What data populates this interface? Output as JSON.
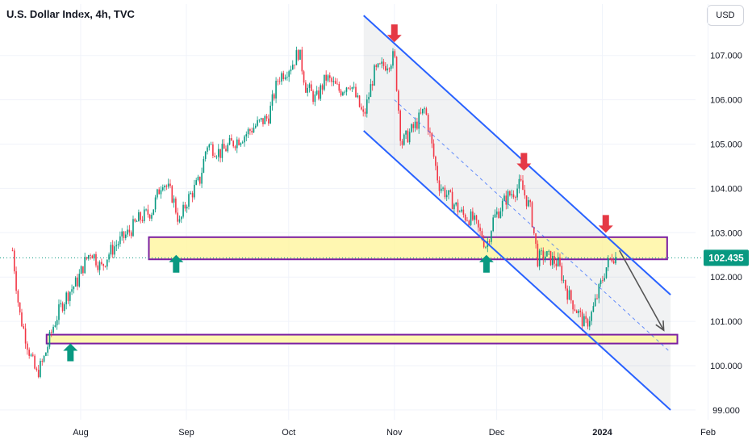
{
  "header": {
    "title": "U.S. Dollar Index, 4h, TVC"
  },
  "currency_button": {
    "label": "USD"
  },
  "colors": {
    "up": "#089981",
    "down": "#f23645",
    "channel": "#2962ff",
    "zone_fill": "#fff59d",
    "zone_border": "#7b1fa2",
    "arrow_up": "#089981",
    "arrow_down": "#e53945",
    "projection": "#555555"
  },
  "chart_data": {
    "type": "candlestick",
    "title": "U.S. Dollar Index, 4h, TVC",
    "currency": "USD",
    "last_price": "102.435",
    "ylim": [
      98.8,
      108.3
    ],
    "y_ticks": [
      "99.000",
      "100.000",
      "101.000",
      "102.000",
      "103.000",
      "104.000",
      "105.000",
      "106.000",
      "107.000"
    ],
    "x_ticks": [
      "Aug",
      "Sep",
      "Oct",
      "Nov",
      "Dec",
      "2024",
      "Feb"
    ],
    "path": [
      [
        "2023-07-12",
        102.6
      ],
      [
        "2023-07-14",
        101.2
      ],
      [
        "2023-07-17",
        100.3
      ],
      [
        "2023-07-19",
        99.8
      ],
      [
        "2023-07-21",
        100.1
      ],
      [
        "2023-07-24",
        100.9
      ],
      [
        "2023-07-26",
        101.3
      ],
      [
        "2023-07-28",
        101.6
      ],
      [
        "2023-07-31",
        101.9
      ],
      [
        "2023-08-02",
        102.3
      ],
      [
        "2023-08-04",
        102.6
      ],
      [
        "2023-08-07",
        102.2
      ],
      [
        "2023-08-09",
        102.5
      ],
      [
        "2023-08-11",
        102.7
      ],
      [
        "2023-08-15",
        103.0
      ],
      [
        "2023-08-18",
        103.3
      ],
      [
        "2023-08-22",
        103.5
      ],
      [
        "2023-08-25",
        104.2
      ],
      [
        "2023-08-28",
        103.8
      ],
      [
        "2023-08-30",
        103.2
      ],
      [
        "2023-09-01",
        103.7
      ],
      [
        "2023-09-05",
        104.2
      ],
      [
        "2023-09-07",
        105.0
      ],
      [
        "2023-09-11",
        104.8
      ],
      [
        "2023-09-14",
        105.0
      ],
      [
        "2023-09-18",
        105.2
      ],
      [
        "2023-09-21",
        105.4
      ],
      [
        "2023-09-25",
        105.6
      ],
      [
        "2023-09-28",
        106.5
      ],
      [
        "2023-10-02",
        106.8
      ],
      [
        "2023-10-04",
        107.1
      ],
      [
        "2023-10-06",
        106.3
      ],
      [
        "2023-10-09",
        106.0
      ],
      [
        "2023-10-12",
        106.5
      ],
      [
        "2023-10-16",
        106.2
      ],
      [
        "2023-10-19",
        106.4
      ],
      [
        "2023-10-23",
        105.6
      ],
      [
        "2023-10-26",
        106.6
      ],
      [
        "2023-10-31",
        106.9
      ],
      [
        "2023-11-01",
        107.0
      ],
      [
        "2023-11-03",
        105.0
      ],
      [
        "2023-11-07",
        105.4
      ],
      [
        "2023-11-10",
        105.8
      ],
      [
        "2023-11-14",
        104.1
      ],
      [
        "2023-11-17",
        103.8
      ],
      [
        "2023-11-21",
        103.4
      ],
      [
        "2023-11-24",
        103.3
      ],
      [
        "2023-11-28",
        102.7
      ],
      [
        "2023-11-30",
        103.3
      ],
      [
        "2023-12-04",
        103.8
      ],
      [
        "2023-12-07",
        104.0
      ],
      [
        "2023-12-08",
        104.1
      ],
      [
        "2023-12-11",
        103.5
      ],
      [
        "2023-12-13",
        102.4
      ],
      [
        "2023-12-15",
        102.5
      ],
      [
        "2023-12-19",
        102.3
      ],
      [
        "2023-12-22",
        101.6
      ],
      [
        "2023-12-27",
        100.9
      ],
      [
        "2023-12-29",
        101.2
      ],
      [
        "2024-01-02",
        102.2
      ],
      [
        "2024-01-04",
        102.5
      ],
      [
        "2024-01-05",
        102.435
      ]
    ],
    "channel": {
      "upper": [
        [
          "2023-10-23",
          107.9
        ],
        [
          "2024-01-21",
          101.6
        ]
      ],
      "lower": [
        [
          "2023-10-23",
          105.3
        ],
        [
          "2024-01-21",
          99.0
        ]
      ],
      "mid": [
        [
          "2023-11-01",
          106.0
        ],
        [
          "2024-01-21",
          100.3
        ]
      ]
    },
    "zones": [
      {
        "from": "2023-08-21",
        "to": "2024-01-20",
        "low": 102.4,
        "high": 102.9
      },
      {
        "from": "2023-07-22",
        "to": "2024-01-23",
        "low": 100.5,
        "high": 100.7
      }
    ],
    "arrows": [
      {
        "date": "2023-07-29",
        "price": 100.3,
        "dir": "up"
      },
      {
        "date": "2023-08-29",
        "price": 102.3,
        "dir": "up"
      },
      {
        "date": "2023-11-28",
        "price": 102.3,
        "dir": "up"
      },
      {
        "date": "2023-11-01",
        "price": 107.5,
        "dir": "down"
      },
      {
        "date": "2023-12-09",
        "price": 104.6,
        "dir": "down"
      },
      {
        "date": "2024-01-02",
        "price": 103.2,
        "dir": "down"
      }
    ],
    "projection": [
      [
        "2024-01-06",
        102.6
      ],
      [
        "2024-01-19",
        100.8
      ]
    ]
  }
}
